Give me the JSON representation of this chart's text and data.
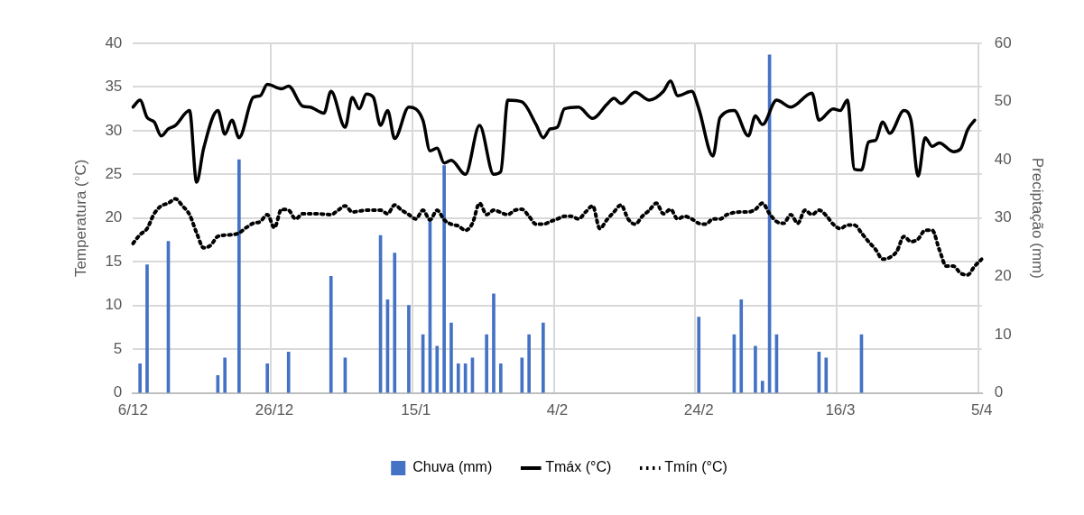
{
  "chart_data": {
    "type": "line",
    "ylabel": "Temperatura (°C)",
    "y2label": "Preciptação (mm)",
    "categories": [
      "6/12",
      null,
      null,
      null,
      null,
      null,
      null,
      null,
      null,
      null,
      null,
      null,
      null,
      null,
      null,
      null,
      null,
      null,
      null,
      null,
      "26/12",
      null,
      null,
      null,
      null,
      null,
      null,
      null,
      null,
      null,
      null,
      null,
      null,
      null,
      null,
      null,
      null,
      null,
      null,
      null,
      "15/1",
      null,
      null,
      null,
      null,
      null,
      null,
      null,
      null,
      null,
      null,
      null,
      null,
      null,
      null,
      null,
      null,
      null,
      null,
      null,
      "4/2",
      null,
      null,
      null,
      null,
      null,
      null,
      null,
      null,
      null,
      null,
      null,
      null,
      null,
      null,
      null,
      null,
      null,
      null,
      null,
      "24/2",
      null,
      null,
      null,
      null,
      null,
      null,
      null,
      null,
      null,
      null,
      null,
      null,
      null,
      null,
      null,
      null,
      null,
      null,
      null,
      "16/3",
      null,
      null,
      null,
      null,
      null,
      null,
      null,
      null,
      null,
      null,
      null,
      null,
      null,
      null,
      null,
      null,
      null,
      null,
      null,
      "5/4"
    ],
    "ylim": [
      0,
      40
    ],
    "yticks": [
      0,
      5,
      10,
      15,
      20,
      25,
      30,
      35,
      40
    ],
    "y2lim": [
      0,
      60
    ],
    "y2ticks": [
      0,
      10,
      20,
      30,
      40,
      50,
      60
    ],
    "grid": true,
    "legend": "bottom",
    "marker": "none",
    "series": [
      {
        "name": "Chuva (mm)",
        "type": "bar",
        "axis": "y2",
        "color": "#4472c4",
        "values": [
          null,
          5,
          22,
          null,
          null,
          26,
          null,
          null,
          null,
          null,
          null,
          null,
          3,
          6,
          null,
          40,
          null,
          null,
          null,
          5,
          null,
          null,
          7,
          null,
          null,
          null,
          null,
          null,
          20,
          null,
          6,
          null,
          null,
          null,
          null,
          27,
          16,
          24,
          null,
          15,
          null,
          10,
          30,
          8,
          39,
          12,
          5,
          5,
          6,
          null,
          10,
          17,
          5,
          null,
          null,
          6,
          10,
          null,
          12,
          null,
          null,
          null,
          null,
          null,
          null,
          null,
          null,
          null,
          null,
          null,
          null,
          null,
          null,
          null,
          null,
          null,
          null,
          null,
          null,
          null,
          13,
          null,
          null,
          null,
          null,
          10,
          16,
          null,
          8,
          2,
          58,
          10,
          null,
          null,
          null,
          null,
          null,
          7,
          6,
          null,
          null,
          null,
          null,
          10,
          null,
          null,
          null,
          null,
          null,
          null,
          null,
          null,
          null,
          null,
          null,
          null,
          null,
          null,
          null,
          null,
          null
        ]
      },
      {
        "name": "Tmáx (°C)",
        "line_style": "solid",
        "color": "#000000",
        "values": [
          32.7,
          33.5,
          31.5,
          31.0,
          29.4,
          30.2,
          30.6,
          null,
          32.3,
          24.1,
          28.0,
          null,
          32.3,
          29.6,
          31.2,
          29.2,
          null,
          33.8,
          34.0,
          35.3,
          null,
          34.8,
          35.1,
          null,
          32.8,
          32.7,
          null,
          32.0,
          34.5,
          null,
          30.4,
          33.8,
          32.5,
          34.2,
          33.8,
          30.6,
          32.3,
          29.1,
          null,
          32.7,
          null,
          31.2,
          27.7,
          28.0,
          26.3,
          26.6,
          null,
          25.0,
          null,
          30.6,
          null,
          25.0,
          25.3,
          33.5,
          null,
          33.3,
          null,
          30.7,
          29.2,
          30.2,
          30.4,
          32.5,
          null,
          32.7,
          null,
          31.4,
          null,
          33.0,
          33.7,
          33.1,
          null,
          34.4,
          null,
          33.5,
          null,
          34.5,
          35.7,
          34.0,
          null,
          34.5,
          32.5,
          null,
          27.1,
          31.5,
          null,
          32.3,
          null,
          29.4,
          31.7,
          30.7,
          null,
          33.5,
          null,
          32.7,
          null,
          null,
          34.3,
          31.2,
          null,
          32.5,
          32.3,
          33.5,
          25.6,
          25.5,
          28.7,
          28.9,
          31.0,
          29.7,
          null,
          32.3,
          31.2,
          24.8,
          29.2,
          28.2,
          28.6,
          null,
          27.6,
          27.9,
          30.1,
          31.2,
          null
        ]
      },
      {
        "name": "Tmín (°C)",
        "line_style": "dotted",
        "color": "#000000",
        "values": [
          17.1,
          18.1,
          18.8,
          20.5,
          21.4,
          21.7,
          22.2,
          21.4,
          20.4,
          18.3,
          16.6,
          16.9,
          17.9,
          null,
          18.1,
          18.3,
          18.9,
          19.4,
          19.6,
          20.4,
          18.9,
          21.0,
          20.9,
          19.9,
          20.5,
          null,
          20.5,
          null,
          20.4,
          20.9,
          21.4,
          20.7,
          null,
          20.9,
          20.9,
          20.9,
          20.5,
          21.5,
          20.9,
          20.4,
          19.9,
          20.9,
          19.8,
          20.9,
          19.8,
          19.3,
          19.1,
          18.6,
          19.4,
          21.7,
          20.4,
          20.9,
          null,
          20.4,
          20.9,
          21.0,
          20.2,
          19.3,
          19.3,
          19.6,
          19.9,
          20.2,
          20.2,
          19.9,
          20.7,
          21.4,
          18.8,
          19.8,
          20.7,
          21.5,
          19.9,
          19.3,
          20.2,
          20.9,
          21.7,
          20.5,
          21.0,
          19.9,
          20.2,
          19.9,
          19.4,
          19.3,
          19.9,
          19.9,
          20.4,
          null,
          20.7,
          20.7,
          21.0,
          21.7,
          20.5,
          19.6,
          19.4,
          20.4,
          19.4,
          20.9,
          20.4,
          20.9,
          20.3,
          19.3,
          18.8,
          19.2,
          19.2,
          18.3,
          17.3,
          16.4,
          15.3,
          15.5,
          16.2,
          17.9,
          17.3,
          17.6,
          18.6,
          18.6,
          16.4,
          14.5,
          14.5,
          13.7,
          13.5,
          14.5,
          15.3
        ]
      }
    ]
  }
}
